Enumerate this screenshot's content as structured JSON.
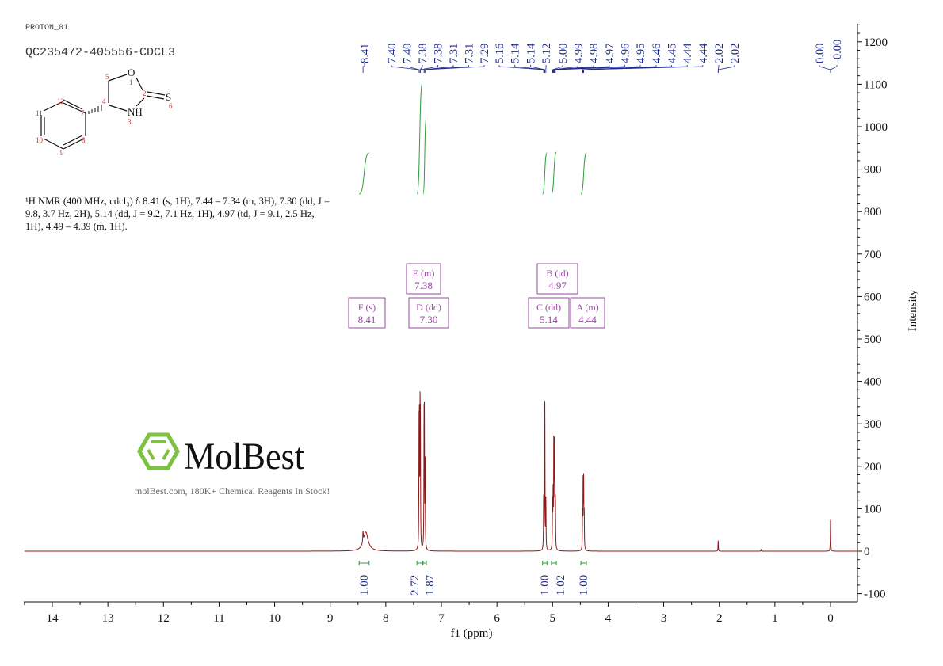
{
  "header": {
    "experiment": "PROTON_01",
    "sample": "QC235472-405556-CDCL3"
  },
  "description": "¹H NMR (400 MHz, cdcl₃) δ 8.41 (s, 1H), 7.44 – 7.34 (m, 3H), 7.30 (dd, J = 9.8, 3.7 Hz, 2H), 5.14 (dd, J = 9.2, 7.1 Hz, 1H), 4.97 (td, J = 9.1, 2.5 Hz, 1H), 4.49 – 4.39 (m, 1H).",
  "molecule": {
    "atoms": {
      "O": "O",
      "NH": "NH",
      "S": "S"
    },
    "numbers": [
      "1",
      "2",
      "3",
      "4",
      "5",
      "6",
      "7",
      "8",
      "9",
      "10",
      "11",
      "12"
    ]
  },
  "watermark": {
    "brand": "MolBest",
    "tagline": "molBest.com, 180K+ Chemical Reagents In Stock!"
  },
  "chart_data": {
    "type": "line",
    "xlabel": "f1 (ppm)",
    "ylabel": "Intensity",
    "xlim": [
      14.5,
      -0.5
    ],
    "ylim": [
      -120,
      1250
    ],
    "x_ticks": [
      14,
      13,
      12,
      11,
      10,
      9,
      8,
      7,
      6,
      5,
      4,
      3,
      2,
      1,
      0
    ],
    "y_ticks": [
      -100,
      0,
      100,
      200,
      300,
      400,
      500,
      600,
      700,
      800,
      900,
      1000,
      1100,
      1200
    ],
    "colors": {
      "spectrum": "#8b1a1a",
      "peak_labels": "#1f2a8a",
      "integrals": "#2e9e3e",
      "multiplets": "#9a4aa0",
      "watermark_green": "#7dc242"
    },
    "peaks": [
      {
        "ppm": 8.41,
        "height": 25,
        "width": 0.006
      },
      {
        "ppm": 8.36,
        "height": 45,
        "width": 0.05
      },
      {
        "ppm": 7.402,
        "height": 250
      },
      {
        "ppm": 7.396,
        "height": 250
      },
      {
        "ppm": 7.384,
        "height": 280
      },
      {
        "ppm": 7.378,
        "height": 260
      },
      {
        "ppm": 7.312,
        "height": 270
      },
      {
        "ppm": 7.306,
        "height": 270
      },
      {
        "ppm": 7.292,
        "height": 200
      },
      {
        "ppm": 5.16,
        "height": 120
      },
      {
        "ppm": 5.142,
        "height": 230
      },
      {
        "ppm": 5.138,
        "height": 230
      },
      {
        "ppm": 5.12,
        "height": 115
      },
      {
        "ppm": 5.0,
        "height": 110
      },
      {
        "ppm": 4.99,
        "height": 120
      },
      {
        "ppm": 4.978,
        "height": 230
      },
      {
        "ppm": 4.968,
        "height": 230
      },
      {
        "ppm": 4.958,
        "height": 110
      },
      {
        "ppm": 4.948,
        "height": 110
      },
      {
        "ppm": 4.46,
        "height": 80
      },
      {
        "ppm": 4.45,
        "height": 150
      },
      {
        "ppm": 4.44,
        "height": 160
      },
      {
        "ppm": 4.43,
        "height": 80
      },
      {
        "ppm": 2.02,
        "height": 25
      },
      {
        "ppm": 1.25,
        "height": 4
      },
      {
        "ppm": 0.0,
        "height": 75
      }
    ],
    "peak_labels": [
      "8.41",
      "7.40",
      "7.40",
      "7.38",
      "7.38",
      "7.31",
      "7.31",
      "7.29",
      "5.16",
      "5.14",
      "5.14",
      "5.12",
      "5.00",
      "4.99",
      "4.98",
      "4.97",
      "4.96",
      "4.95",
      "4.46",
      "4.45",
      "4.44",
      "4.44",
      "2.02",
      "2.02",
      "0.00",
      "-0.00"
    ],
    "integrals": [
      {
        "from": 8.48,
        "to": 8.3,
        "value": "1.00"
      },
      {
        "from": 7.44,
        "to": 7.34,
        "value": "2.72"
      },
      {
        "from": 7.33,
        "to": 7.27,
        "value": "1.87"
      },
      {
        "from": 5.18,
        "to": 5.1,
        "value": "1.00"
      },
      {
        "from": 5.02,
        "to": 4.93,
        "value": "1.02"
      },
      {
        "from": 4.49,
        "to": 4.39,
        "value": "1.00"
      }
    ],
    "multiplets": [
      {
        "id": "F",
        "type": "s",
        "shift": "8.41"
      },
      {
        "id": "E",
        "type": "m",
        "shift": "7.38"
      },
      {
        "id": "D",
        "type": "dd",
        "shift": "7.30"
      },
      {
        "id": "B",
        "type": "td",
        "shift": "4.97"
      },
      {
        "id": "C",
        "type": "dd",
        "shift": "5.14"
      },
      {
        "id": "A",
        "type": "m",
        "shift": "4.44"
      }
    ]
  }
}
